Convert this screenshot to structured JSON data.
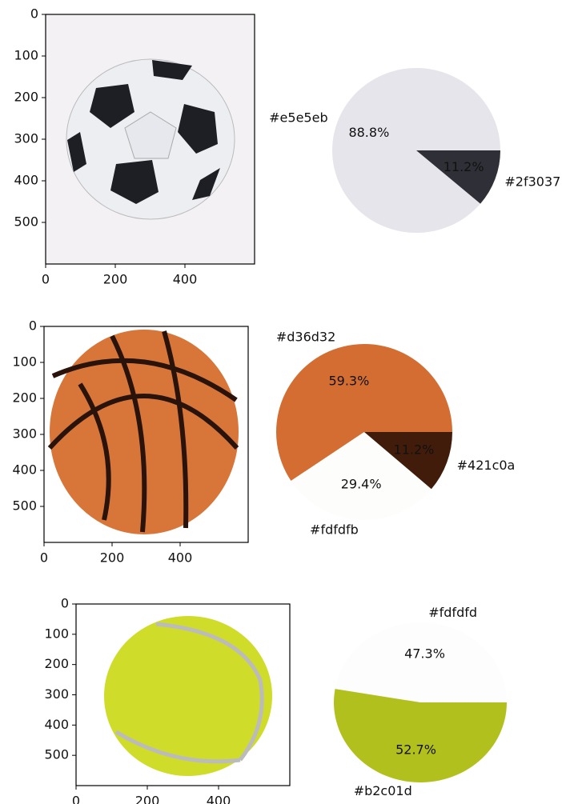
{
  "chart_data": [
    {
      "type": "image",
      "xlim": [
        0,
        600
      ],
      "ylim": [
        600,
        0
      ],
      "xticks": [
        0,
        200,
        400
      ],
      "yticks": [
        0,
        100,
        200,
        300,
        400,
        500
      ]
    },
    {
      "type": "pie",
      "categories": [
        "#e5e5eb",
        "#2f3037"
      ],
      "values": [
        88.8,
        11.2
      ],
      "value_labels": [
        "88.8%",
        "11.2%"
      ],
      "colors": [
        "#e5e5eb",
        "#2f3037"
      ]
    },
    {
      "type": "image",
      "xlim": [
        0,
        600
      ],
      "ylim": [
        600,
        0
      ],
      "xticks": [
        0,
        200,
        400
      ],
      "yticks": [
        0,
        100,
        200,
        300,
        400,
        500
      ]
    },
    {
      "type": "pie",
      "categories": [
        "#d36d32",
        "#fdfdfb",
        "#421c0a"
      ],
      "values": [
        59.3,
        29.4,
        11.2
      ],
      "value_labels": [
        "59.3%",
        "29.4%",
        "11.2%"
      ],
      "colors": [
        "#d36d32",
        "#fdfdfb",
        "#421c0a"
      ]
    },
    {
      "type": "image",
      "xlim": [
        0,
        600
      ],
      "ylim": [
        600,
        0
      ],
      "xticks": [
        0,
        200,
        400
      ],
      "yticks": [
        0,
        100,
        200,
        300,
        400,
        500
      ]
    },
    {
      "type": "pie",
      "categories": [
        "#fdfdfd",
        "#b2c01d"
      ],
      "values": [
        47.3,
        52.7
      ],
      "value_labels": [
        "47.3%",
        "52.7%"
      ],
      "colors": [
        "#fdfdfd",
        "#b2c01d"
      ]
    }
  ]
}
